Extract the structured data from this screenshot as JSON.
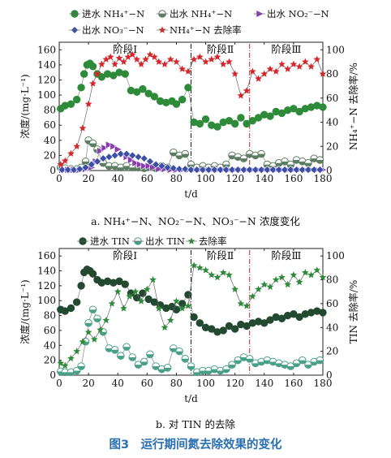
{
  "figure_caption": "图3　运行期间氮去除效果的变化",
  "colors": {
    "nh4_in": "#2e8b3a",
    "nh4_out": "#6f9a72",
    "no2_out": "#8a3db3",
    "no3_out": "#3b4fa8",
    "nh4_removal": "#d7262b",
    "tin_in": "#234a30",
    "tin_out": "#4aa087",
    "tin_removal": "#2e8b3a"
  },
  "chart_data": [
    {
      "type": "line",
      "subtitle": "a. NH₄⁺−N、NO₂⁻−N、NO₃⁻−N 浓度变化",
      "xlabel": "t/d",
      "ylabel": "浓度/(mg·L⁻¹)",
      "y2label": "NH₄⁺−N 去除率/%",
      "xlim": [
        0,
        180
      ],
      "ylim": [
        0,
        170
      ],
      "y2lim": [
        0,
        106.25
      ],
      "xticks": [
        0,
        20,
        40,
        60,
        80,
        100,
        120,
        140,
        160,
        180
      ],
      "yticks": [
        0,
        20,
        40,
        60,
        80,
        100,
        120,
        140,
        160
      ],
      "y2ticks": [
        0,
        20,
        40,
        60,
        80,
        100
      ],
      "phases": [
        {
          "label": "阶段Ⅰ",
          "x": 45
        },
        {
          "label": "阶段Ⅱ",
          "x": 110
        },
        {
          "label": "阶段Ⅲ",
          "x": 155
        }
      ],
      "dividers": [
        90,
        130
      ],
      "legend": [
        "进水 NH₄⁺−N",
        "出水 NH₄⁺−N",
        "出水 NO₂⁻−N",
        "出水 NO₃⁻−N",
        "NH₄⁺−N 去除率"
      ],
      "series": [
        {
          "name": "进水 NH₄⁺−N",
          "axis": "left",
          "marker": "circle",
          "color": "#2e8b3a",
          "x": [
            1,
            4,
            8,
            12,
            15,
            17,
            19,
            21,
            23,
            26,
            29,
            33,
            37,
            41,
            45,
            49,
            53,
            57,
            61,
            65,
            69,
            73,
            77,
            80,
            84,
            88,
            92,
            96,
            100,
            104,
            108,
            112,
            116,
            120,
            124,
            128,
            132,
            136,
            140,
            144,
            148,
            152,
            156,
            160,
            164,
            168,
            172,
            176,
            180
          ],
          "y": [
            82,
            86,
            88,
            94,
            110,
            128,
            140,
            142,
            138,
            128,
            124,
            128,
            126,
            130,
            128,
            106,
            104,
            108,
            102,
            98,
            92,
            90,
            92,
            88,
            94,
            110,
            64,
            62,
            68,
            60,
            58,
            64,
            66,
            62,
            70,
            62,
            66,
            70,
            74,
            72,
            78,
            76,
            80,
            82,
            78,
            82,
            84,
            86,
            84
          ]
        },
        {
          "name": "出水 NH₄⁺−N",
          "axis": "left",
          "marker": "halfcircle",
          "color": "#5c7d61",
          "x": [
            1,
            4,
            8,
            12,
            15,
            18,
            20,
            23,
            26,
            30,
            34,
            38,
            42,
            46,
            50,
            54,
            58,
            62,
            66,
            70,
            74,
            78,
            82,
            86,
            90,
            94,
            98,
            102,
            106,
            110,
            114,
            118,
            122,
            126,
            130,
            134,
            138,
            142,
            146,
            150,
            154,
            158,
            162,
            166,
            170,
            174,
            178
          ],
          "y": [
            4,
            3,
            2,
            2,
            4,
            12,
            40,
            36,
            28,
            10,
            6,
            6,
            4,
            6,
            4,
            4,
            3,
            4,
            3,
            6,
            4,
            24,
            20,
            22,
            8,
            4,
            6,
            4,
            6,
            4,
            8,
            20,
            18,
            16,
            22,
            20,
            22,
            8,
            6,
            10,
            12,
            8,
            14,
            12,
            10,
            16,
            14
          ]
        },
        {
          "name": "出水 NO₂⁻−N",
          "axis": "left",
          "marker": "triangle",
          "color": "#8a3db3",
          "x": [
            2,
            6,
            10,
            14,
            18,
            22,
            25,
            28,
            31,
            34,
            37,
            40,
            43,
            46,
            49,
            52,
            55,
            58,
            61,
            64,
            68,
            72,
            76,
            80,
            84,
            88,
            92,
            96,
            100,
            104,
            108,
            112,
            116,
            120,
            124,
            128,
            132,
            136,
            140,
            144,
            148,
            152,
            156,
            160,
            164,
            168,
            172,
            176,
            180
          ],
          "y": [
            1,
            1,
            1,
            1,
            2,
            4,
            12,
            26,
            30,
            34,
            32,
            28,
            22,
            18,
            14,
            10,
            8,
            6,
            6,
            4,
            2,
            2,
            1,
            1,
            1,
            1,
            1,
            1,
            1,
            1,
            1,
            1,
            1,
            1,
            1,
            1,
            1,
            1,
            1,
            1,
            1,
            1,
            1,
            1,
            1,
            1,
            1,
            1,
            1
          ]
        },
        {
          "name": "出水 NO₃⁻−N",
          "axis": "left",
          "marker": "diamond",
          "color": "#3b4fa8",
          "x": [
            2,
            6,
            10,
            14,
            18,
            22,
            26,
            30,
            34,
            38,
            42,
            46,
            50,
            54,
            58,
            62,
            66,
            70,
            74,
            78,
            82,
            86,
            90,
            94,
            98,
            102,
            106,
            110,
            114,
            118,
            122,
            126,
            130,
            134,
            138,
            142,
            146,
            150,
            154,
            158,
            162,
            166,
            170,
            174,
            178
          ],
          "y": [
            1,
            1,
            1,
            2,
            4,
            8,
            12,
            16,
            18,
            20,
            22,
            22,
            20,
            18,
            16,
            12,
            8,
            6,
            4,
            3,
            2,
            2,
            1,
            1,
            1,
            1,
            1,
            1,
            1,
            1,
            1,
            1,
            1,
            1,
            1,
            1,
            1,
            1,
            1,
            1,
            1,
            1,
            1,
            1,
            1
          ]
        },
        {
          "name": "NH₄⁺−N 去除率",
          "axis": "right",
          "marker": "star",
          "color": "#d7262b",
          "x": [
            1,
            4,
            8,
            12,
            16,
            20,
            23,
            26,
            29,
            32,
            35,
            38,
            41,
            44,
            47,
            50,
            53,
            56,
            59,
            62,
            65,
            68,
            72,
            76,
            80,
            84,
            88,
            92,
            96,
            100,
            104,
            108,
            112,
            116,
            120,
            124,
            128,
            132,
            136,
            140,
            144,
            148,
            152,
            156,
            160,
            164,
            168,
            172,
            176,
            180
          ],
          "y": [
            5,
            8,
            14,
            20,
            35,
            55,
            72,
            80,
            88,
            92,
            94,
            88,
            93,
            90,
            94,
            96,
            92,
            88,
            92,
            96,
            94,
            90,
            88,
            92,
            90,
            84,
            82,
            92,
            94,
            90,
            92,
            94,
            88,
            90,
            80,
            62,
            66,
            82,
            76,
            80,
            84,
            82,
            88,
            84,
            88,
            86,
            90,
            86,
            92,
            80
          ]
        }
      ]
    },
    {
      "type": "line",
      "subtitle": "b. 对 TIN 的去除",
      "xlabel": "t/d",
      "ylabel": "浓度/(mg·L⁻¹)",
      "y2label": "TIN 去除率/%",
      "xlim": [
        0,
        180
      ],
      "ylim": [
        0,
        170
      ],
      "y2lim": [
        0,
        106.25
      ],
      "xticks": [
        0,
        20,
        40,
        60,
        80,
        100,
        120,
        140,
        160,
        180
      ],
      "yticks": [
        0,
        20,
        40,
        60,
        80,
        100,
        120,
        140,
        160
      ],
      "y2ticks": [
        0,
        20,
        40,
        60,
        80,
        100
      ],
      "phases": [
        {
          "label": "阶段Ⅰ",
          "x": 45
        },
        {
          "label": "阶段Ⅱ",
          "x": 110
        },
        {
          "label": "阶段Ⅲ",
          "x": 155
        }
      ],
      "dividers": [
        90,
        130
      ],
      "legend": [
        "进水 TIN",
        "出水 TIN",
        "去除率"
      ],
      "series": [
        {
          "name": "进水 TIN",
          "axis": "left",
          "marker": "circle",
          "color": "#234a30",
          "x": [
            1,
            4,
            8,
            12,
            15,
            17,
            19,
            21,
            23,
            26,
            29,
            33,
            37,
            41,
            45,
            49,
            53,
            57,
            61,
            65,
            69,
            73,
            77,
            80,
            84,
            88,
            92,
            96,
            100,
            104,
            108,
            112,
            116,
            120,
            124,
            128,
            132,
            136,
            140,
            144,
            148,
            152,
            156,
            160,
            164,
            168,
            172,
            176,
            180
          ],
          "y": [
            88,
            86,
            90,
            98,
            120,
            138,
            142,
            140,
            136,
            128,
            124,
            126,
            124,
            126,
            122,
            110,
            104,
            110,
            102,
            98,
            94,
            90,
            92,
            88,
            96,
            108,
            78,
            70,
            64,
            62,
            58,
            60,
            66,
            62,
            68,
            66,
            70,
            72,
            70,
            74,
            78,
            76,
            80,
            82,
            78,
            82,
            84,
            86,
            84
          ]
        },
        {
          "name": "出水 TIN",
          "axis": "left",
          "marker": "halfcircle",
          "color": "#4aa087",
          "x": [
            1,
            4,
            8,
            12,
            15,
            18,
            20,
            23,
            26,
            30,
            34,
            38,
            42,
            46,
            50,
            54,
            58,
            62,
            66,
            70,
            74,
            78,
            82,
            86,
            90,
            94,
            98,
            102,
            106,
            110,
            114,
            118,
            122,
            126,
            130,
            134,
            138,
            142,
            146,
            150,
            154,
            158,
            162,
            166,
            170,
            174,
            178
          ],
          "y": [
            5,
            4,
            4,
            6,
            12,
            45,
            70,
            88,
            76,
            58,
            36,
            34,
            26,
            38,
            24,
            14,
            18,
            28,
            12,
            8,
            10,
            36,
            32,
            22,
            12,
            4,
            6,
            6,
            8,
            6,
            8,
            14,
            20,
            24,
            22,
            16,
            18,
            20,
            18,
            16,
            14,
            12,
            16,
            20,
            14,
            18,
            20
          ]
        },
        {
          "name": "去除率",
          "axis": "right",
          "marker": "star",
          "color": "#2e8b3a",
          "x": [
            1,
            4,
            8,
            12,
            16,
            20,
            24,
            28,
            32,
            36,
            40,
            44,
            48,
            52,
            56,
            60,
            64,
            68,
            72,
            76,
            80,
            84,
            88,
            92,
            96,
            100,
            104,
            108,
            112,
            116,
            120,
            124,
            128,
            132,
            136,
            140,
            144,
            148,
            152,
            156,
            160,
            164,
            168,
            172,
            176,
            180
          ],
          "y": [
            10,
            8,
            14,
            20,
            28,
            36,
            30,
            38,
            46,
            60,
            70,
            56,
            66,
            70,
            62,
            72,
            80,
            56,
            40,
            46,
            62,
            56,
            58,
            92,
            90,
            88,
            84,
            82,
            86,
            84,
            72,
            60,
            58,
            66,
            72,
            76,
            74,
            80,
            82,
            76,
            84,
            78,
            86,
            84,
            88,
            82
          ]
        }
      ]
    }
  ]
}
